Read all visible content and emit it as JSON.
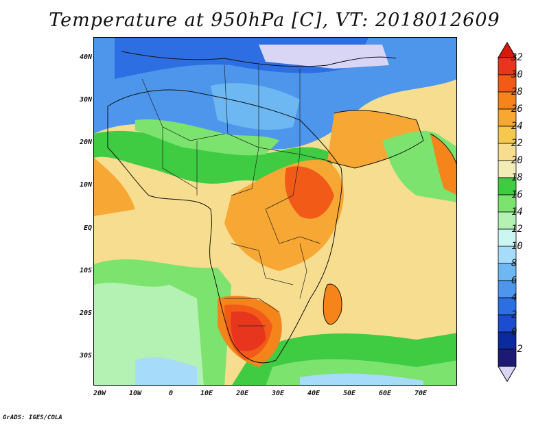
{
  "title": "Temperature at 950hPa [C], VT: 2018012609",
  "footer": "GrADS: IGES/COLA",
  "map": {
    "y_ticks": [
      "40N",
      "30N",
      "20N",
      "10N",
      "EQ",
      "10S",
      "20S",
      "30S"
    ],
    "x_ticks": [
      "20W",
      "10W",
      "0",
      "10E",
      "20E",
      "30E",
      "40E",
      "50E",
      "60E",
      "70E"
    ]
  },
  "colorbar": {
    "labels": [
      "32",
      "30",
      "28",
      "26",
      "24",
      "22",
      "20",
      "18",
      "16",
      "14",
      "12",
      "10",
      "8",
      "6",
      "4",
      "2",
      "0",
      "-2"
    ],
    "colors": {
      "c32": "#e8361e",
      "c30": "#f25a17",
      "c28": "#f5841b",
      "c26": "#f7a733",
      "c24": "#f5c84f",
      "c22": "#f6dd8f",
      "c20": "#f3ecb6",
      "c18": "#3fcc43",
      "c16": "#7de36f",
      "c14": "#b3f2b3",
      "c12": "#cbf6f2",
      "c10": "#a6dcfa",
      "c8": "#6db7f2",
      "c6": "#4d96ec",
      "c4": "#2d6fe2",
      "c2": "#1d4cd0",
      "c0": "#0b2a9e",
      "cm2": "#1c1a73",
      "top": "#d9190e",
      "bottom": "#d9d5f5"
    }
  }
}
